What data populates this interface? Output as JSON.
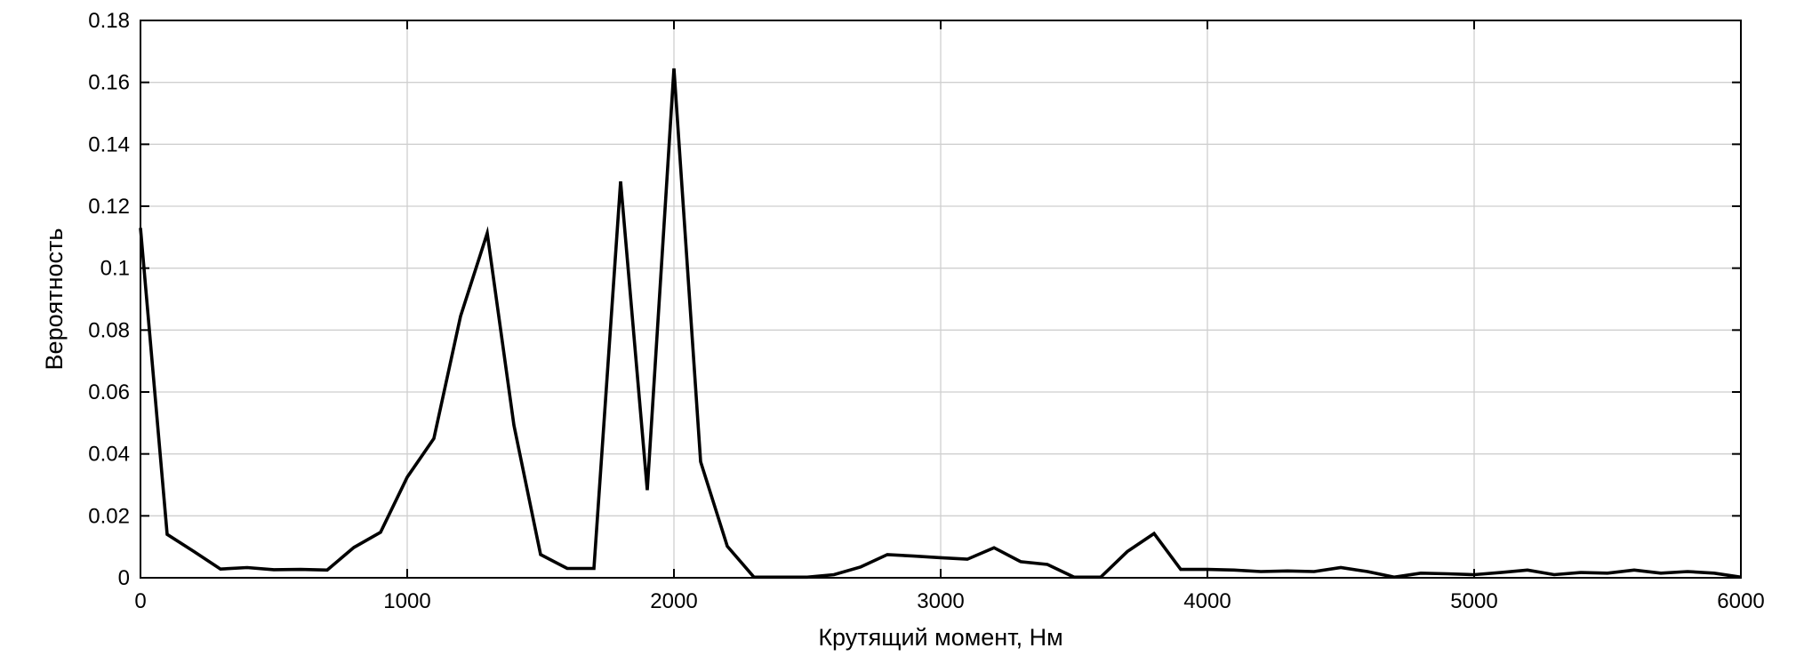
{
  "chart_data": {
    "type": "line",
    "title": "",
    "xlabel": "Крутящий момент, Нм",
    "ylabel": "Вероятность",
    "xlim": [
      0,
      6000
    ],
    "ylim": [
      0,
      0.18
    ],
    "xticks": [
      0,
      1000,
      2000,
      3000,
      4000,
      5000,
      6000
    ],
    "xtick_labels": [
      "0",
      "1000",
      "2000",
      "3000",
      "4000",
      "5000",
      "6000"
    ],
    "yticks": [
      0,
      0.02,
      0.04,
      0.06,
      0.08,
      0.1,
      0.12,
      0.14,
      0.16,
      0.18
    ],
    "ytick_labels": [
      "0",
      "0.02",
      "0.04",
      "0.06",
      "0.08",
      "0.1",
      "0.12",
      "0.14",
      "0.16",
      "0.18"
    ],
    "grid": true,
    "series": [
      {
        "color": "#000000",
        "x": [
          0,
          100,
          200,
          300,
          400,
          500,
          600,
          700,
          800,
          900,
          1000,
          1100,
          1200,
          1300,
          1400,
          1500,
          1600,
          1700,
          1800,
          1900,
          2000,
          2100,
          2200,
          2300,
          2400,
          2500,
          2600,
          2700,
          2800,
          2900,
          3000,
          3100,
          3200,
          3300,
          3400,
          3500,
          3600,
          3700,
          3800,
          3900,
          4000,
          4100,
          4200,
          4300,
          4400,
          4500,
          4600,
          4700,
          4800,
          4900,
          5000,
          5100,
          5200,
          5300,
          5400,
          5500,
          5600,
          5700,
          5800,
          5900,
          6000
        ],
        "y": [
          0.113,
          0.014,
          0.0085,
          0.0028,
          0.0033,
          0.0026,
          0.0027,
          0.0025,
          0.0098,
          0.0147,
          0.0325,
          0.045,
          0.0845,
          0.1113,
          0.0493,
          0.0075,
          0.003,
          0.003,
          0.128,
          0.0283,
          0.1645,
          0.0375,
          0.0102,
          0.0002,
          0.0002,
          0.0002,
          0.001,
          0.0035,
          0.0075,
          0.007,
          0.0065,
          0.006,
          0.0097,
          0.0052,
          0.0043,
          0.0002,
          0.0002,
          0.0085,
          0.0143,
          0.0027,
          0.0027,
          0.0025,
          0.002,
          0.0022,
          0.002,
          0.0033,
          0.002,
          0.0002,
          0.0015,
          0.0013,
          0.001,
          0.0017,
          0.0025,
          0.001,
          0.0017,
          0.0015,
          0.0025,
          0.0015,
          0.002,
          0.0015,
          0.0002
        ]
      }
    ]
  }
}
